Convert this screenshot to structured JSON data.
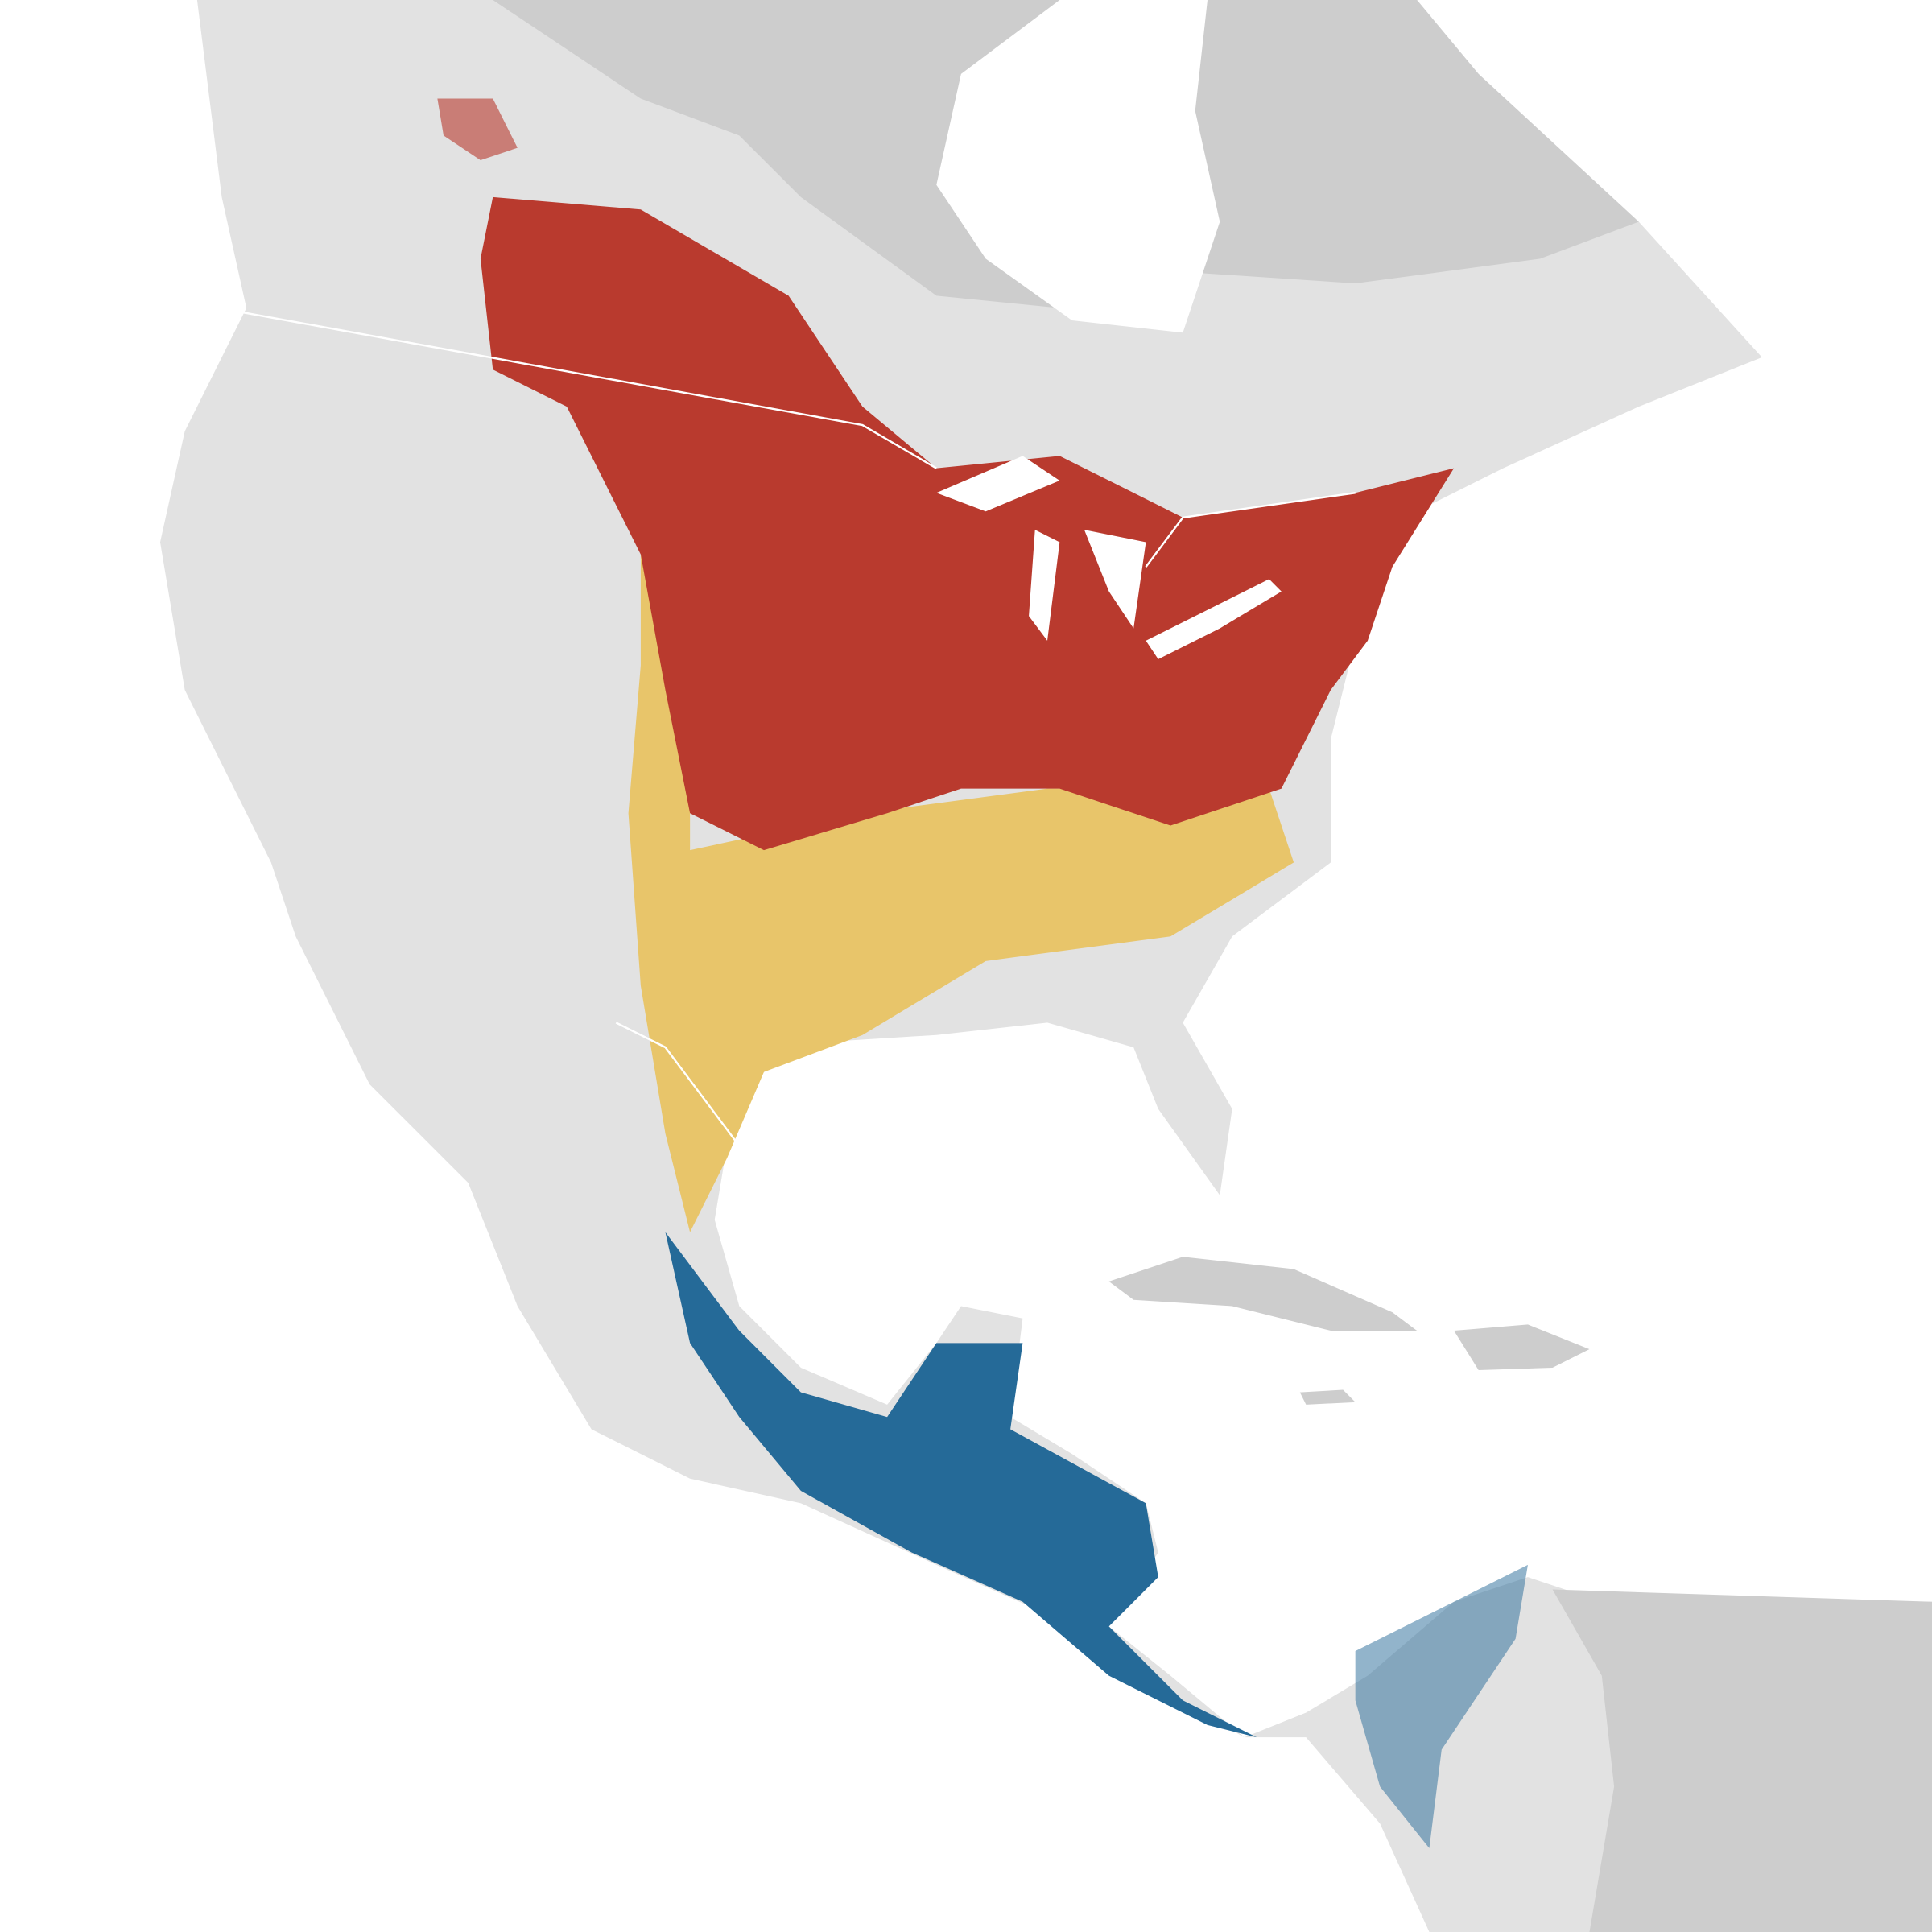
{
  "map": {
    "palette": [
      "#b93a2e",
      "#e8c56a",
      "#256a98"
    ]
  }
}
